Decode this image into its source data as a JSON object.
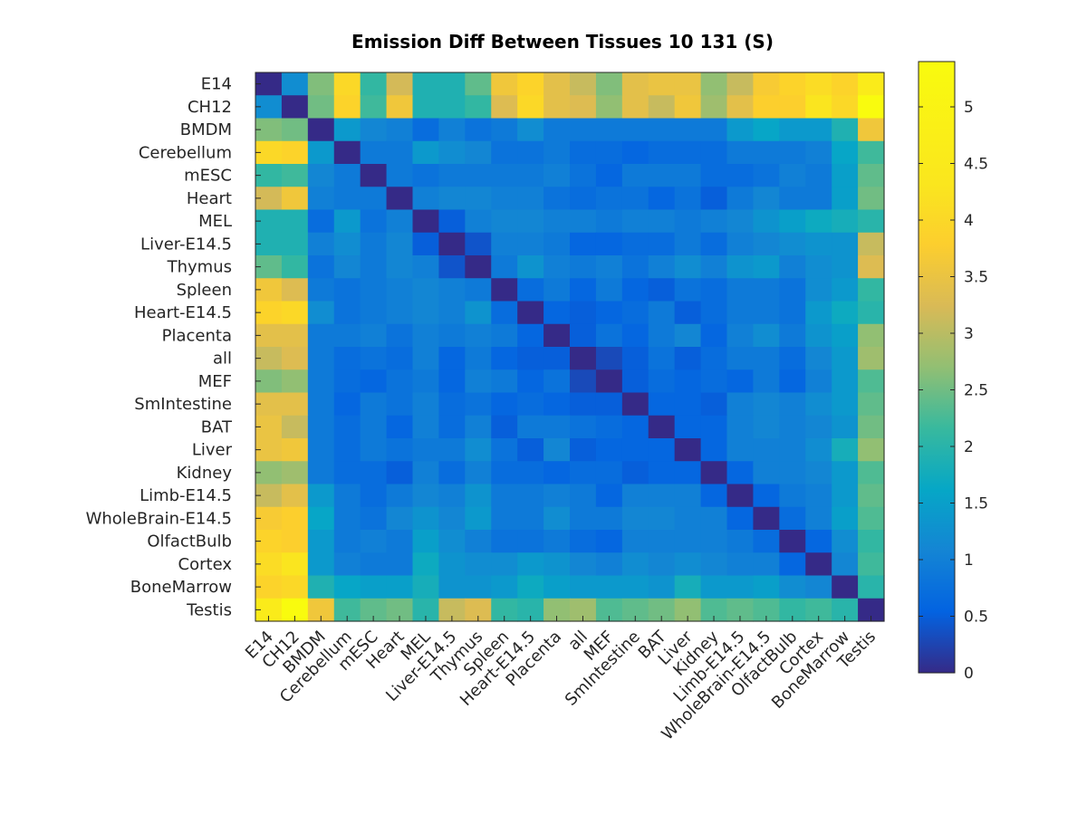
{
  "chart_data": {
    "type": "heatmap",
    "title": "Emission Diff Between Tissues 10 131 (S)",
    "categories": [
      "E14",
      "CH12",
      "BMDM",
      "Cerebellum",
      "mESC",
      "Heart",
      "MEL",
      "Liver-E14.5",
      "Thymus",
      "Spleen",
      "Heart-E14.5",
      "Placenta",
      "all",
      "MEF",
      "SmIntestine",
      "BAT",
      "Liver",
      "Kidney",
      "Limb-E14.5",
      "WholeBrain-E14.5",
      "OlfactBulb",
      "Cortex",
      "BoneMarrow",
      "Testis"
    ],
    "colorbar": {
      "min": 0,
      "max": 5.4,
      "ticks": [
        0,
        0.5,
        1,
        1.5,
        2,
        2.5,
        3,
        3.5,
        4,
        4.5,
        5
      ],
      "tick_labels": [
        "0",
        "0.5",
        "1",
        "1.5",
        "2",
        "2.5",
        "3",
        "3.5",
        "4",
        "4.5",
        "5"
      ],
      "colormap": "parula"
    },
    "values": [
      [
        0.0,
        1.2,
        2.6,
        4.0,
        2.1,
        3.2,
        1.9,
        1.9,
        2.4,
        3.6,
        3.9,
        3.4,
        3.1,
        2.6,
        3.4,
        3.5,
        3.5,
        2.7,
        3.1,
        3.7,
        3.9,
        4.1,
        3.9,
        4.6
      ],
      [
        1.2,
        0.0,
        2.5,
        3.9,
        2.2,
        3.6,
        1.9,
        1.9,
        2.1,
        3.3,
        4.0,
        3.4,
        3.3,
        2.7,
        3.4,
        3.1,
        3.6,
        2.8,
        3.4,
        3.8,
        3.8,
        4.3,
        4.0,
        5.4
      ],
      [
        2.6,
        2.5,
        0.0,
        1.4,
        1.1,
        1.0,
        0.7,
        1.0,
        0.8,
        0.9,
        1.2,
        0.9,
        0.9,
        0.9,
        0.9,
        0.9,
        0.9,
        0.9,
        1.4,
        1.6,
        1.4,
        1.4,
        1.9,
        3.6
      ],
      [
        4.0,
        3.9,
        1.4,
        0.0,
        0.9,
        0.9,
        1.4,
        1.2,
        1.1,
        0.8,
        0.8,
        0.9,
        0.7,
        0.7,
        0.6,
        0.7,
        0.7,
        0.7,
        0.9,
        0.9,
        0.9,
        1.0,
        1.6,
        2.2
      ],
      [
        2.1,
        2.2,
        1.1,
        0.9,
        0.0,
        0.9,
        0.8,
        0.9,
        0.9,
        0.9,
        0.9,
        1.0,
        0.8,
        0.6,
        0.9,
        0.9,
        0.9,
        0.7,
        0.7,
        0.8,
        1.0,
        0.9,
        1.5,
        2.4
      ],
      [
        3.2,
        3.6,
        1.0,
        0.9,
        0.9,
        0.0,
        1.0,
        1.1,
        1.1,
        1.0,
        1.0,
        0.8,
        0.7,
        0.8,
        0.8,
        0.6,
        0.8,
        0.5,
        0.9,
        1.1,
        0.9,
        0.9,
        1.5,
        2.5
      ],
      [
        1.9,
        1.9,
        0.7,
        1.4,
        0.8,
        1.0,
        0.0,
        0.5,
        1.0,
        1.1,
        1.1,
        1.0,
        1.0,
        0.9,
        1.0,
        1.0,
        0.9,
        1.0,
        1.1,
        1.3,
        1.5,
        1.7,
        1.8,
        2.0
      ],
      [
        1.9,
        1.9,
        1.0,
        1.2,
        0.9,
        1.1,
        0.5,
        0.0,
        0.4,
        1.0,
        1.0,
        0.9,
        0.6,
        0.6,
        0.7,
        0.7,
        0.9,
        0.7,
        1.0,
        1.1,
        1.2,
        1.3,
        1.3,
        3.1
      ],
      [
        2.4,
        2.1,
        0.8,
        1.1,
        0.9,
        1.1,
        1.0,
        0.4,
        0.0,
        0.9,
        1.3,
        1.0,
        0.9,
        1.0,
        0.8,
        1.0,
        1.2,
        1.0,
        1.3,
        1.4,
        1.0,
        1.2,
        1.3,
        3.3
      ],
      [
        3.6,
        3.3,
        0.9,
        0.8,
        0.9,
        1.0,
        1.1,
        1.0,
        0.9,
        0.0,
        0.7,
        0.9,
        0.6,
        0.9,
        0.6,
        0.5,
        0.8,
        0.7,
        0.9,
        0.9,
        0.8,
        1.2,
        1.4,
        2.1
      ],
      [
        3.9,
        4.0,
        1.2,
        0.8,
        0.9,
        1.0,
        1.1,
        1.0,
        1.3,
        0.7,
        0.0,
        0.6,
        0.5,
        0.6,
        0.7,
        0.9,
        0.5,
        0.7,
        0.9,
        0.9,
        0.8,
        1.4,
        1.7,
        2.0
      ],
      [
        3.4,
        3.4,
        0.9,
        0.9,
        1.0,
        0.8,
        1.0,
        0.9,
        1.0,
        0.9,
        0.6,
        0.0,
        0.5,
        0.8,
        0.6,
        0.9,
        1.1,
        0.6,
        1.0,
        1.2,
        0.9,
        1.3,
        1.5,
        2.7
      ],
      [
        3.1,
        3.3,
        0.9,
        0.7,
        0.8,
        0.7,
        1.0,
        0.6,
        0.9,
        0.6,
        0.5,
        0.5,
        0.0,
        0.3,
        0.5,
        0.8,
        0.5,
        0.7,
        0.9,
        0.9,
        0.7,
        1.1,
        1.4,
        2.8
      ],
      [
        2.6,
        2.7,
        0.9,
        0.7,
        0.6,
        0.8,
        0.9,
        0.6,
        1.0,
        0.9,
        0.6,
        0.8,
        0.3,
        0.0,
        0.5,
        0.7,
        0.6,
        0.7,
        0.6,
        0.9,
        0.6,
        1.0,
        1.4,
        2.3
      ],
      [
        3.4,
        3.4,
        0.9,
        0.6,
        0.9,
        0.8,
        1.0,
        0.7,
        0.8,
        0.6,
        0.7,
        0.6,
        0.5,
        0.5,
        0.0,
        0.6,
        0.6,
        0.5,
        1.0,
        1.1,
        1.0,
        1.2,
        1.4,
        2.4
      ],
      [
        3.5,
        3.1,
        0.9,
        0.7,
        0.9,
        0.6,
        1.0,
        0.7,
        1.0,
        0.5,
        0.9,
        0.9,
        0.8,
        0.7,
        0.6,
        0.0,
        0.6,
        0.6,
        1.0,
        1.1,
        1.0,
        1.1,
        1.3,
        2.5
      ],
      [
        3.5,
        3.6,
        0.9,
        0.7,
        0.9,
        0.8,
        0.9,
        0.9,
        1.2,
        0.8,
        0.5,
        1.1,
        0.5,
        0.6,
        0.6,
        0.6,
        0.0,
        0.6,
        1.0,
        1.0,
        1.0,
        1.2,
        1.8,
        2.7
      ],
      [
        2.7,
        2.8,
        0.9,
        0.7,
        0.7,
        0.5,
        1.0,
        0.7,
        1.0,
        0.7,
        0.7,
        0.6,
        0.7,
        0.7,
        0.5,
        0.6,
        0.6,
        0.0,
        0.6,
        1.0,
        1.0,
        1.1,
        1.4,
        2.3
      ],
      [
        3.1,
        3.4,
        1.4,
        0.9,
        0.7,
        0.9,
        1.1,
        1.0,
        1.3,
        0.9,
        0.9,
        1.0,
        0.9,
        0.6,
        1.0,
        1.0,
        1.0,
        0.6,
        0.0,
        0.6,
        0.9,
        1.0,
        1.4,
        2.4
      ],
      [
        3.7,
        3.8,
        1.6,
        0.9,
        0.8,
        1.1,
        1.3,
        1.1,
        1.4,
        0.9,
        0.9,
        1.2,
        0.9,
        0.9,
        1.1,
        1.1,
        1.0,
        1.0,
        0.6,
        0.0,
        0.7,
        1.0,
        1.5,
        2.3
      ],
      [
        3.9,
        3.8,
        1.4,
        0.9,
        1.0,
        0.9,
        1.5,
        1.2,
        1.0,
        0.8,
        0.8,
        0.9,
        0.7,
        0.6,
        1.0,
        1.0,
        1.0,
        1.0,
        0.9,
        0.7,
        0.0,
        0.6,
        1.2,
        2.1
      ],
      [
        4.1,
        4.3,
        1.4,
        1.0,
        0.9,
        0.9,
        1.7,
        1.3,
        1.2,
        1.2,
        1.4,
        1.3,
        1.1,
        1.0,
        1.2,
        1.1,
        1.2,
        1.1,
        1.0,
        1.0,
        0.6,
        0.0,
        1.1,
        2.2
      ],
      [
        3.9,
        4.0,
        1.9,
        1.6,
        1.5,
        1.5,
        1.8,
        1.3,
        1.3,
        1.4,
        1.7,
        1.5,
        1.4,
        1.4,
        1.4,
        1.3,
        1.8,
        1.4,
        1.4,
        1.5,
        1.2,
        1.1,
        0.0,
        2.0
      ],
      [
        4.6,
        5.4,
        3.6,
        2.2,
        2.4,
        2.5,
        2.0,
        3.1,
        3.3,
        2.1,
        2.0,
        2.7,
        2.8,
        2.3,
        2.4,
        2.5,
        2.7,
        2.3,
        2.4,
        2.3,
        2.1,
        2.2,
        2.0,
        0.0
      ]
    ]
  }
}
